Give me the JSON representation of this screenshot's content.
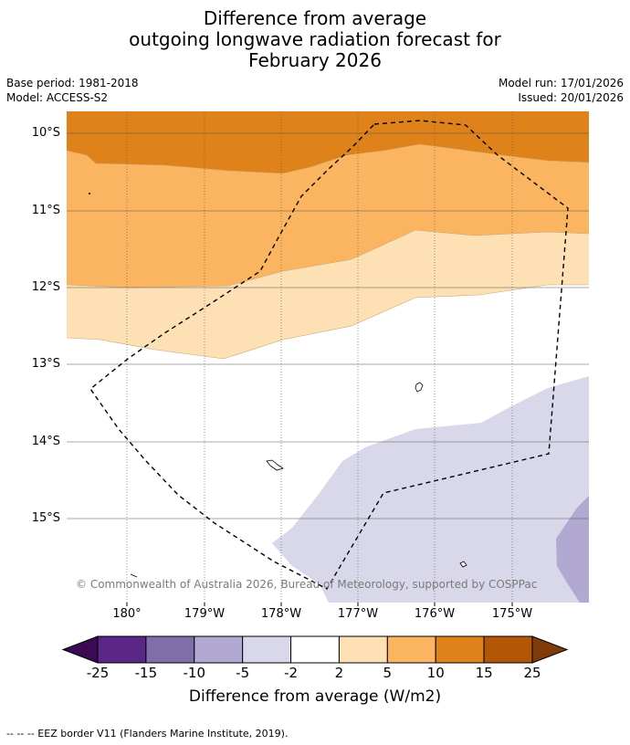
{
  "title": {
    "line1": "Difference from average",
    "line2": "outgoing longwave radiation forecast for",
    "line3": "February 2026"
  },
  "meta": {
    "base_period": "Base period: 1981-2018",
    "model": "Model: ACCESS-S2",
    "model_run": "Model run: 17/01/2026",
    "issued": "Issued: 20/01/2026"
  },
  "lat_labels": [
    "10°S",
    "11°S",
    "12°S",
    "13°S",
    "14°S",
    "15°S"
  ],
  "lon_labels": [
    "180°",
    "179°W",
    "178°W",
    "177°W",
    "176°W",
    "175°W"
  ],
  "copyright": "© Commonwealth of Australia 2026, Bureau of Meteorology, supported by COSPPac",
  "colorbar": {
    "label": "Difference from average (W/m2)",
    "ticks": [
      "-25",
      "-15",
      "-10",
      "-5",
      "-2",
      "2",
      "5",
      "10",
      "15",
      "25"
    ],
    "colors": [
      "#3b0a52",
      "#5a2688",
      "#7e6fab",
      "#b1a9d1",
      "#d8d8ea",
      "#ffffff",
      "#fde0b4",
      "#fbb460",
      "#e0821a",
      "#b35606",
      "#7f3b08"
    ]
  },
  "footnote": "-- -- -- EEZ border V11 (Flanders Marine Institute, 2019).",
  "legend": {
    "border": "EEZ border"
  }
}
